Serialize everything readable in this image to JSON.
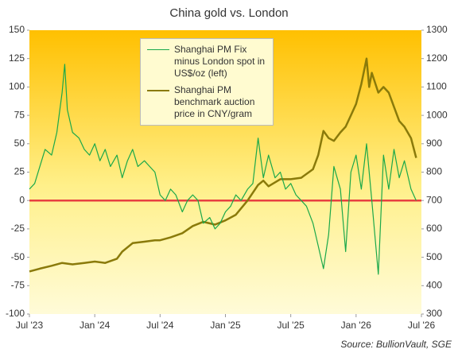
{
  "chart_data": {
    "type": "line",
    "title": "China gold vs. London",
    "source": "Source: BullionVault, SGE",
    "xlim": [
      2023.5,
      2026.5
    ],
    "xticks": [
      {
        "value": 2023.5,
        "label": "Jul '23"
      },
      {
        "value": 2024.0,
        "label": "Jan '24"
      },
      {
        "value": 2024.5,
        "label": "Jul '24"
      },
      {
        "value": 2025.0,
        "label": "Jan '25"
      },
      {
        "value": 2025.5,
        "label": "Jul '25"
      },
      {
        "value": 2026.0,
        "label": "Jan '26"
      },
      {
        "value": 2026.5,
        "label": "Jul '26"
      }
    ],
    "ylim": [
      -100,
      150
    ],
    "yticks": [
      -100,
      -75,
      -50,
      -25,
      0,
      25,
      50,
      75,
      100,
      125,
      150
    ],
    "y2lim": [
      300,
      1300
    ],
    "y2ticks": [
      300,
      400,
      500,
      600,
      700,
      800,
      900,
      1000,
      1100,
      1200,
      1300
    ],
    "zero_line_color": "#e84040",
    "series": [
      {
        "name": "Shanghai PM Fix minus London spot in US$/oz (left)",
        "color": "#1aa84a",
        "width": 1.2,
        "x": [
          2023.5,
          2023.54,
          2023.58,
          2023.62,
          2023.67,
          2023.71,
          2023.75,
          2023.77,
          2023.79,
          2023.83,
          2023.88,
          2023.92,
          2023.96,
          2024.0,
          2024.04,
          2024.08,
          2024.12,
          2024.17,
          2024.21,
          2024.25,
          2024.29,
          2024.33,
          2024.38,
          2024.42,
          2024.46,
          2024.5,
          2024.54,
          2024.58,
          2024.62,
          2024.67,
          2024.71,
          2024.75,
          2024.79,
          2024.83,
          2024.88,
          2024.92,
          2024.96,
          2025.0,
          2025.04,
          2025.08,
          2025.12,
          2025.17,
          2025.21,
          2025.25,
          2025.29,
          2025.33,
          2025.38,
          2025.42,
          2025.46,
          2025.5,
          2025.54,
          2025.58,
          2025.62,
          2025.67,
          2025.71,
          2025.75,
          2025.79,
          2025.83,
          2025.88,
          2025.92,
          2025.96,
          2026.0,
          2026.04,
          2026.08,
          2026.12,
          2026.17,
          2026.21,
          2026.25,
          2026.29,
          2026.33,
          2026.37,
          2026.42,
          2026.46
        ],
        "values": [
          10,
          15,
          30,
          45,
          40,
          60,
          95,
          120,
          80,
          60,
          55,
          45,
          40,
          50,
          35,
          45,
          30,
          40,
          20,
          35,
          45,
          30,
          35,
          30,
          25,
          5,
          0,
          10,
          5,
          -10,
          0,
          5,
          0,
          -20,
          -15,
          -25,
          -20,
          -10,
          -5,
          5,
          0,
          10,
          15,
          55,
          20,
          40,
          20,
          25,
          10,
          15,
          5,
          0,
          -5,
          -20,
          -40,
          -60,
          -30,
          30,
          10,
          -45,
          25,
          40,
          10,
          50,
          0,
          -65,
          40,
          10,
          45,
          20,
          35,
          10,
          0
        ]
      },
      {
        "name": "Shanghai PM benchmark auction price in CNY/gram",
        "color": "#8a7a0a",
        "width": 2.5,
        "axis": "y2",
        "x": [
          2023.5,
          2023.58,
          2023.67,
          2023.75,
          2023.83,
          2023.92,
          2024.0,
          2024.08,
          2024.17,
          2024.21,
          2024.29,
          2024.38,
          2024.46,
          2024.5,
          2024.58,
          2024.67,
          2024.75,
          2024.83,
          2024.92,
          2025.0,
          2025.08,
          2025.17,
          2025.25,
          2025.29,
          2025.33,
          2025.42,
          2025.5,
          2025.58,
          2025.67,
          2025.71,
          2025.75,
          2025.79,
          2025.83,
          2025.88,
          2025.92,
          2025.96,
          2026.0,
          2026.04,
          2026.08,
          2026.1,
          2026.12,
          2026.17,
          2026.21,
          2026.25,
          2026.29,
          2026.33,
          2026.37,
          2026.42,
          2026.46
        ],
        "values": [
          450,
          460,
          470,
          480,
          475,
          480,
          485,
          480,
          495,
          520,
          550,
          555,
          560,
          560,
          570,
          585,
          610,
          625,
          615,
          630,
          650,
          700,
          755,
          770,
          750,
          775,
          775,
          780,
          810,
          860,
          945,
          920,
          910,
          940,
          960,
          1000,
          1040,
          1110,
          1200,
          1100,
          1150,
          1080,
          1100,
          1080,
          1030,
          980,
          960,
          920,
          850
        ]
      }
    ]
  }
}
